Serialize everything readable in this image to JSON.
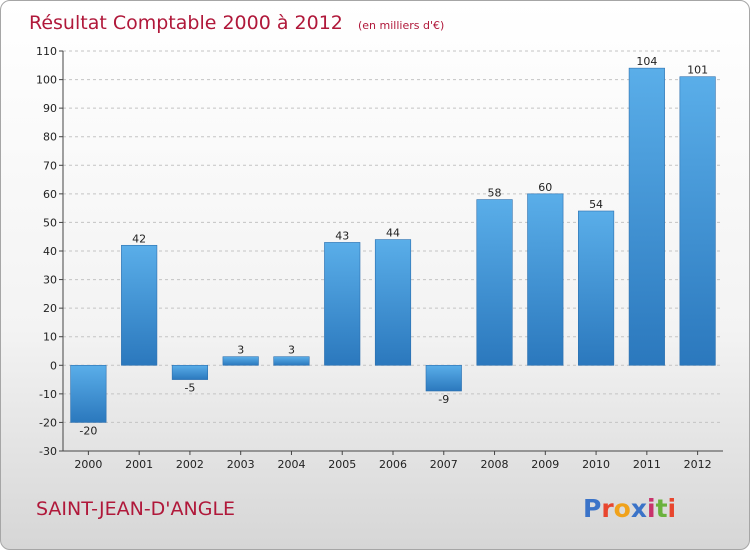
{
  "chart_data": {
    "type": "bar",
    "title": "Résultat Comptable 2000 à 2012",
    "subtitle": "(en milliers d'€)",
    "categories": [
      "2000",
      "2001",
      "2002",
      "2003",
      "2004",
      "2005",
      "2006",
      "2007",
      "2008",
      "2009",
      "2010",
      "2011",
      "2012"
    ],
    "values": [
      -20,
      42,
      -5,
      3,
      3,
      43,
      44,
      -9,
      58,
      60,
      54,
      104,
      101
    ],
    "data_labels": [
      "-20",
      "42",
      "-5",
      "3",
      "3",
      "43",
      "44",
      "-9",
      "58",
      "60",
      "54",
      "104",
      "101"
    ],
    "ylim": [
      -30,
      110
    ],
    "yticks": [
      -30,
      -20,
      -10,
      0,
      10,
      20,
      30,
      40,
      50,
      60,
      70,
      80,
      90,
      100,
      110
    ],
    "grid": "horizontal-dashed",
    "bar_color": "#3f8fd2",
    "bar_color_light": "#5aaee9",
    "bar_color_dark": "#2b78bd"
  },
  "footer": {
    "commune": "SAINT-JEAN-D'ANGLE",
    "brand": "Proxiti",
    "brand_colors": [
      "#3a73c8",
      "#e8462e",
      "#f0a21b",
      "#3a73c8",
      "#c8336b",
      "#6ab23d",
      "#e8462e"
    ]
  }
}
